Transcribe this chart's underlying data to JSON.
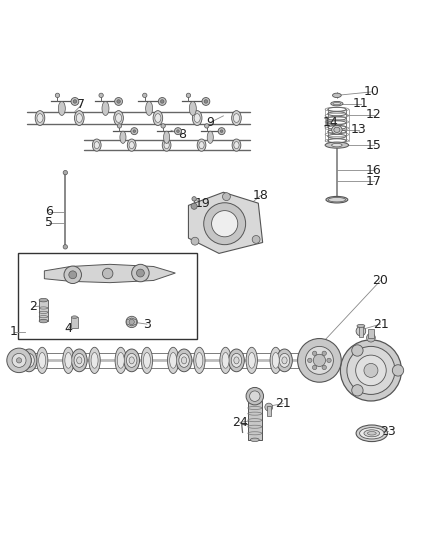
{
  "bg_color": "#ffffff",
  "line_color": "#555555",
  "label_color": "#333333",
  "fontsize": 9
}
